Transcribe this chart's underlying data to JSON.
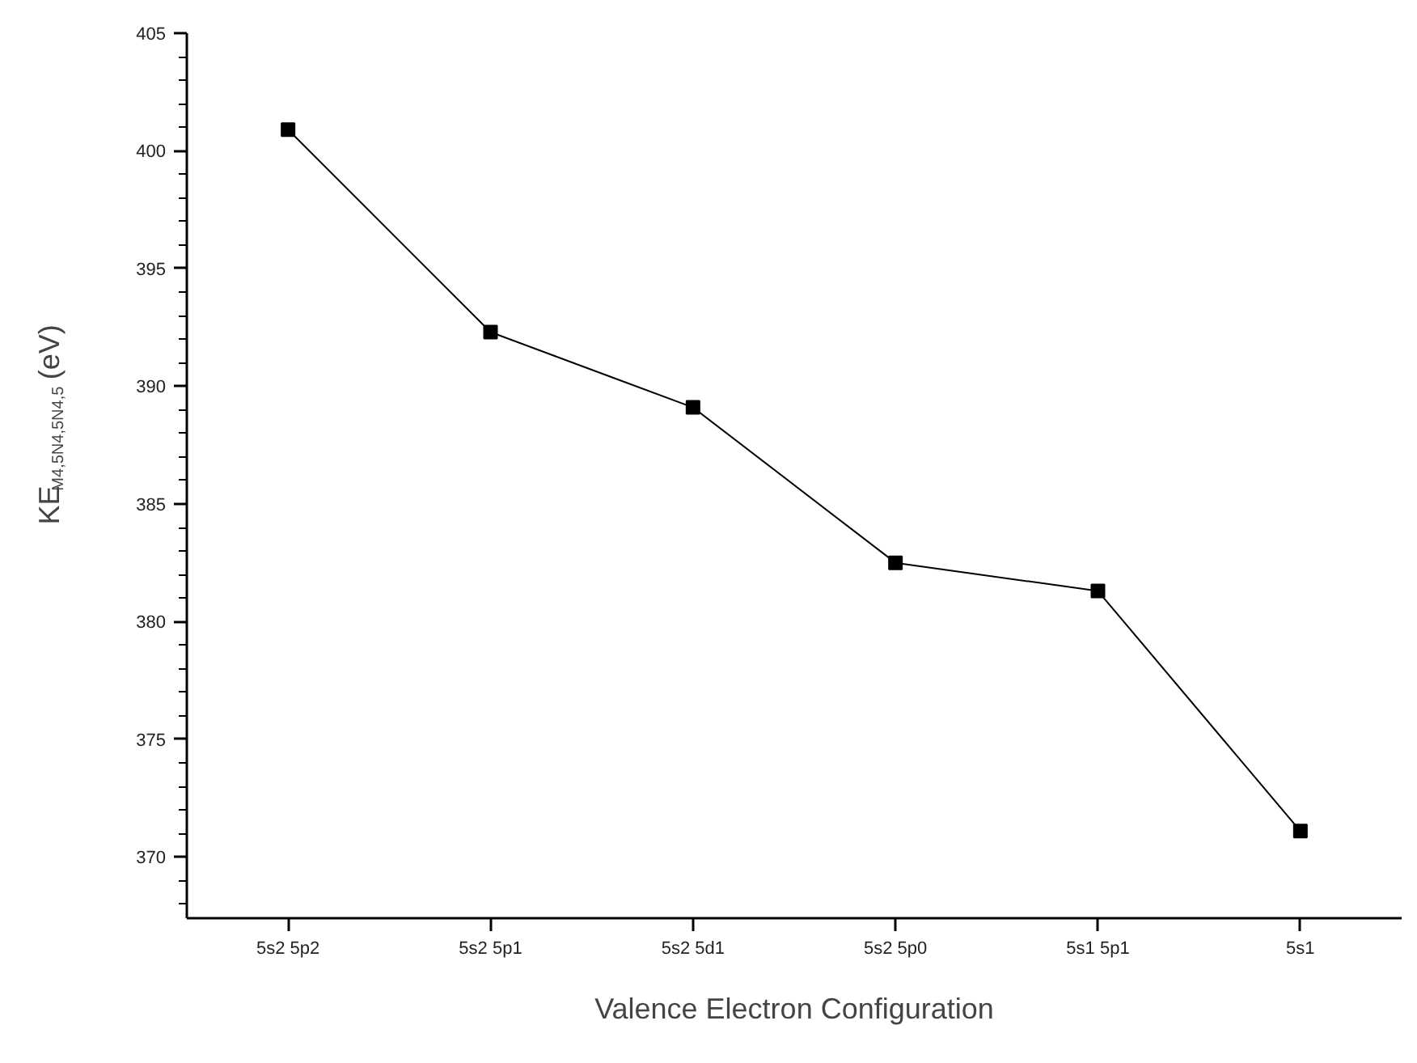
{
  "chart_data": {
    "type": "line",
    "xlabel": "Valence Electron Configuration",
    "ylabel": "KE$_{M4,5N4,5N4,5}$ (eV)",
    "categories": [
      "5s2 5p2",
      "5s2 5p1",
      "5s2 5d1",
      "5s2 5p0",
      "5s1 5p1",
      "5s1"
    ],
    "series": [
      {
        "color": "#000000",
        "values": [
          400.9,
          392.3,
          389.1,
          382.5,
          381.3,
          371.1
        ]
      }
    ],
    "ylim": [
      367.4,
      405
    ],
    "yticks": [
      370,
      375,
      380,
      385,
      390,
      395,
      400,
      405
    ],
    "marker": "square",
    "line_style": "solid",
    "grid": false
  }
}
